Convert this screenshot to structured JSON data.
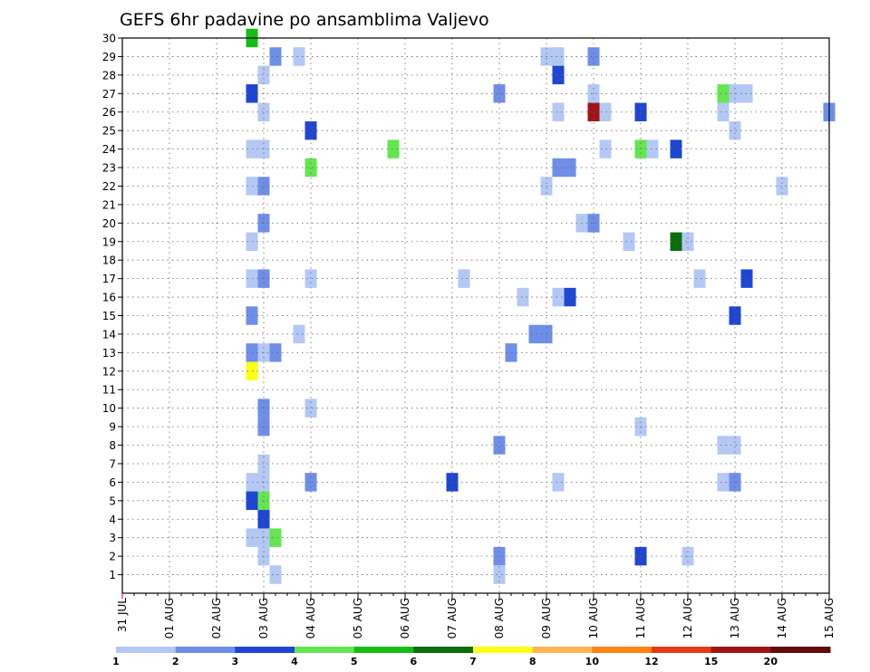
{
  "chart_data": {
    "type": "heatmap",
    "title": "GEFS 6hr padavine po ansamblima Valjevo",
    "xlabel": "",
    "ylabel": "",
    "x_tick_labels": [
      "31 JUL",
      "01 AUG",
      "02 AUG",
      "03 AUG",
      "04 AUG",
      "05 AUG",
      "06 AUG",
      "07 AUG",
      "08 AUG",
      "09 AUG",
      "10 AUG",
      "11 AUG",
      "12 AUG",
      "13 AUG",
      "14 AUG",
      "15 AUG"
    ],
    "y_tick_labels": [
      "1",
      "2",
      "3",
      "4",
      "5",
      "6",
      "7",
      "8",
      "9",
      "10",
      "11",
      "12",
      "13",
      "14",
      "15",
      "16",
      "17",
      "18",
      "19",
      "20",
      "21",
      "22",
      "23",
      "24",
      "25",
      "26",
      "27",
      "28",
      "29",
      "30"
    ],
    "xlim_days": [
      0,
      15
    ],
    "ylim": [
      0,
      30
    ],
    "grid": true,
    "colorbar": {
      "position": "bottom",
      "tick_labels": [
        "1",
        "2",
        "3",
        "4",
        "5",
        "6",
        "7",
        "8",
        "10",
        "12",
        "15",
        "20"
      ],
      "colors": [
        "#b4c8f5",
        "#6e8ee8",
        "#1e46d2",
        "#64e650",
        "#14be14",
        "#0a6e0a",
        "#ffff14",
        "#ffb450",
        "#ff8214",
        "#e63c14",
        "#a01414",
        "#640a0a"
      ]
    },
    "cells": [
      {
        "member": 30,
        "day": 2.75,
        "class": 5
      },
      {
        "member": 29,
        "day": 3.25,
        "class": 2
      },
      {
        "member": 29,
        "day": 3.75,
        "class": 1
      },
      {
        "member": 29,
        "day": 9.0,
        "class": 1
      },
      {
        "member": 29,
        "day": 9.25,
        "class": 1
      },
      {
        "member": 29,
        "day": 10.0,
        "class": 2
      },
      {
        "member": 28,
        "day": 3.0,
        "class": 1
      },
      {
        "member": 28,
        "day": 9.25,
        "class": 3
      },
      {
        "member": 27,
        "day": 2.75,
        "class": 3
      },
      {
        "member": 27,
        "day": 8.0,
        "class": 2
      },
      {
        "member": 27,
        "day": 10.0,
        "class": 1
      },
      {
        "member": 27,
        "day": 12.75,
        "class": 4
      },
      {
        "member": 27,
        "day": 13.0,
        "class": 1
      },
      {
        "member": 27,
        "day": 13.25,
        "class": 1
      },
      {
        "member": 26,
        "day": 3.0,
        "class": 1
      },
      {
        "member": 26,
        "day": 9.25,
        "class": 1
      },
      {
        "member": 26,
        "day": 10.0,
        "class": 11
      },
      {
        "member": 26,
        "day": 10.25,
        "class": 1
      },
      {
        "member": 26,
        "day": 11.0,
        "class": 3
      },
      {
        "member": 26,
        "day": 12.75,
        "class": 1
      },
      {
        "member": 26,
        "day": 15.0,
        "class": 2
      },
      {
        "member": 25,
        "day": 4.0,
        "class": 3
      },
      {
        "member": 25,
        "day": 13.0,
        "class": 1
      },
      {
        "member": 24,
        "day": 2.75,
        "class": 1
      },
      {
        "member": 24,
        "day": 3.0,
        "class": 1
      },
      {
        "member": 24,
        "day": 5.75,
        "class": 4
      },
      {
        "member": 24,
        "day": 10.25,
        "class": 1
      },
      {
        "member": 24,
        "day": 11.0,
        "class": 4
      },
      {
        "member": 24,
        "day": 11.25,
        "class": 1
      },
      {
        "member": 24,
        "day": 11.75,
        "class": 3
      },
      {
        "member": 23,
        "day": 4.0,
        "class": 4
      },
      {
        "member": 23,
        "day": 9.25,
        "class": 2
      },
      {
        "member": 23,
        "day": 9.5,
        "class": 2
      },
      {
        "member": 22,
        "day": 2.75,
        "class": 1
      },
      {
        "member": 22,
        "day": 3.0,
        "class": 2
      },
      {
        "member": 22,
        "day": 9.0,
        "class": 1
      },
      {
        "member": 22,
        "day": 14.0,
        "class": 1
      },
      {
        "member": 20,
        "day": 3.0,
        "class": 2
      },
      {
        "member": 20,
        "day": 9.75,
        "class": 1
      },
      {
        "member": 20,
        "day": 10.0,
        "class": 2
      },
      {
        "member": 19,
        "day": 2.75,
        "class": 1
      },
      {
        "member": 19,
        "day": 10.75,
        "class": 1
      },
      {
        "member": 19,
        "day": 11.75,
        "class": 6
      },
      {
        "member": 19,
        "day": 12.0,
        "class": 1
      },
      {
        "member": 17,
        "day": 2.75,
        "class": 1
      },
      {
        "member": 17,
        "day": 3.0,
        "class": 2
      },
      {
        "member": 17,
        "day": 4.0,
        "class": 1
      },
      {
        "member": 17,
        "day": 7.25,
        "class": 1
      },
      {
        "member": 17,
        "day": 12.25,
        "class": 1
      },
      {
        "member": 17,
        "day": 13.25,
        "class": 3
      },
      {
        "member": 16,
        "day": 8.5,
        "class": 1
      },
      {
        "member": 16,
        "day": 9.25,
        "class": 1
      },
      {
        "member": 16,
        "day": 9.5,
        "class": 3
      },
      {
        "member": 15,
        "day": 2.75,
        "class": 2
      },
      {
        "member": 15,
        "day": 13.0,
        "class": 3
      },
      {
        "member": 14,
        "day": 3.75,
        "class": 1
      },
      {
        "member": 14,
        "day": 8.75,
        "class": 2
      },
      {
        "member": 14,
        "day": 9.0,
        "class": 2
      },
      {
        "member": 13,
        "day": 2.75,
        "class": 2
      },
      {
        "member": 13,
        "day": 3.0,
        "class": 1
      },
      {
        "member": 13,
        "day": 3.25,
        "class": 2
      },
      {
        "member": 13,
        "day": 8.25,
        "class": 2
      },
      {
        "member": 12,
        "day": 2.75,
        "class": 7
      },
      {
        "member": 10,
        "day": 3.0,
        "class": 2
      },
      {
        "member": 10,
        "day": 4.0,
        "class": 1
      },
      {
        "member": 9,
        "day": 3.0,
        "class": 2
      },
      {
        "member": 9,
        "day": 11.0,
        "class": 1
      },
      {
        "member": 8,
        "day": 8.0,
        "class": 2
      },
      {
        "member": 8,
        "day": 12.75,
        "class": 1
      },
      {
        "member": 8,
        "day": 13.0,
        "class": 1
      },
      {
        "member": 7,
        "day": 3.0,
        "class": 1
      },
      {
        "member": 6,
        "day": 2.75,
        "class": 1
      },
      {
        "member": 6,
        "day": 3.0,
        "class": 1
      },
      {
        "member": 6,
        "day": 4.0,
        "class": 2
      },
      {
        "member": 6,
        "day": 7.0,
        "class": 3
      },
      {
        "member": 6,
        "day": 9.25,
        "class": 1
      },
      {
        "member": 6,
        "day": 12.75,
        "class": 1
      },
      {
        "member": 6,
        "day": 13.0,
        "class": 2
      },
      {
        "member": 5,
        "day": 2.75,
        "class": 3
      },
      {
        "member": 5,
        "day": 3.0,
        "class": 4
      },
      {
        "member": 4,
        "day": 3.0,
        "class": 3
      },
      {
        "member": 3,
        "day": 2.75,
        "class": 1
      },
      {
        "member": 3,
        "day": 3.0,
        "class": 1
      },
      {
        "member": 3,
        "day": 3.25,
        "class": 4
      },
      {
        "member": 2,
        "day": 3.0,
        "class": 1
      },
      {
        "member": 2,
        "day": 8.0,
        "class": 2
      },
      {
        "member": 2,
        "day": 11.0,
        "class": 3
      },
      {
        "member": 2,
        "day": 12.0,
        "class": 1
      },
      {
        "member": 1,
        "day": 3.25,
        "class": 1
      },
      {
        "member": 1,
        "day": 8.0,
        "class": 1
      }
    ]
  }
}
